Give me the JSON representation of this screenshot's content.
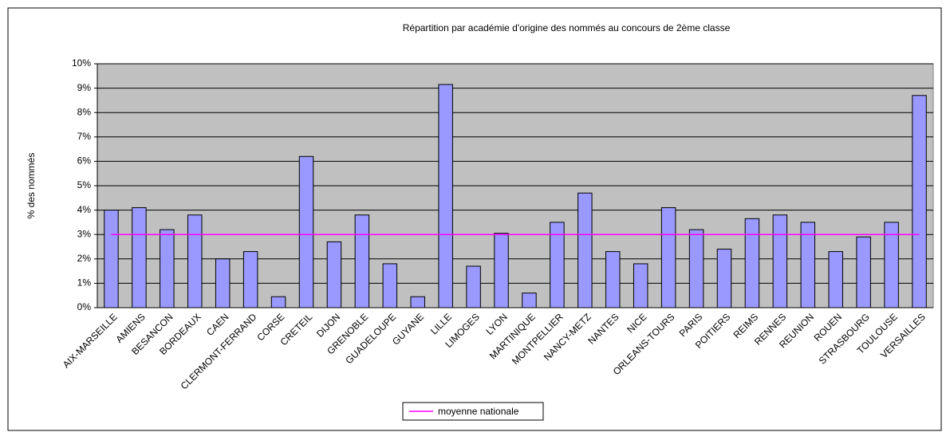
{
  "chart_data": {
    "type": "bar",
    "title": "Répartition par académie d'origine des nommés au concours de 2ème classe",
    "y_label": "% des nommés",
    "categories": [
      "AIX-MARSEILLE",
      "AMIENS",
      "BESANCON",
      "BORDEAUX",
      "CAEN",
      "CLERMONT-FERRAND",
      "CORSE",
      "CRETEIL",
      "DIJON",
      "GRENOBLE",
      "GUADELOUPE",
      "GUYANE",
      "LILLE",
      "LIMOGES",
      "LYON",
      "MARTINIQUE",
      "MONTPELLIER",
      "NANCY-METZ",
      "NANTES",
      "NICE",
      "ORLEANS-TOURS",
      "PARIS",
      "POITIERS",
      "REIMS",
      "RENNES",
      "REUNION",
      "ROUEN",
      "STRASBOURG",
      "TOULOUSE",
      "VERSAILLES"
    ],
    "values": [
      4.0,
      4.1,
      3.2,
      3.8,
      2.0,
      2.3,
      0.45,
      6.2,
      2.7,
      3.8,
      1.8,
      0.45,
      9.15,
      1.7,
      3.05,
      0.6,
      3.5,
      4.7,
      2.3,
      1.8,
      4.1,
      3.2,
      2.4,
      3.65,
      3.8,
      3.5,
      2.3,
      2.9,
      3.5,
      8.7
    ],
    "color": "#9999ff",
    "series": [
      {
        "name": "moyenne nationale",
        "color": "#ff00ff",
        "values": [
          3,
          3,
          3,
          3,
          3,
          3,
          3,
          3,
          3,
          3,
          3,
          3,
          3,
          3,
          3,
          3,
          3,
          3,
          3,
          3,
          3,
          3,
          3,
          3,
          3,
          3,
          3,
          3,
          3,
          3
        ]
      }
    ],
    "ylim": [
      0,
      10
    ],
    "yticks": [
      {
        "value": 0,
        "label": "0%"
      },
      {
        "value": 1,
        "label": "1%"
      },
      {
        "value": 2,
        "label": "2%"
      },
      {
        "value": 3,
        "label": "3%"
      },
      {
        "value": 4,
        "label": "4%"
      },
      {
        "value": 5,
        "label": "5%"
      },
      {
        "value": 6,
        "label": "6%"
      },
      {
        "value": 7,
        "label": "7%"
      },
      {
        "value": 8,
        "label": "8%"
      },
      {
        "value": 9,
        "label": "9%"
      },
      {
        "value": 10,
        "label": "10%"
      }
    ],
    "grid": true,
    "legend": "bottom"
  }
}
